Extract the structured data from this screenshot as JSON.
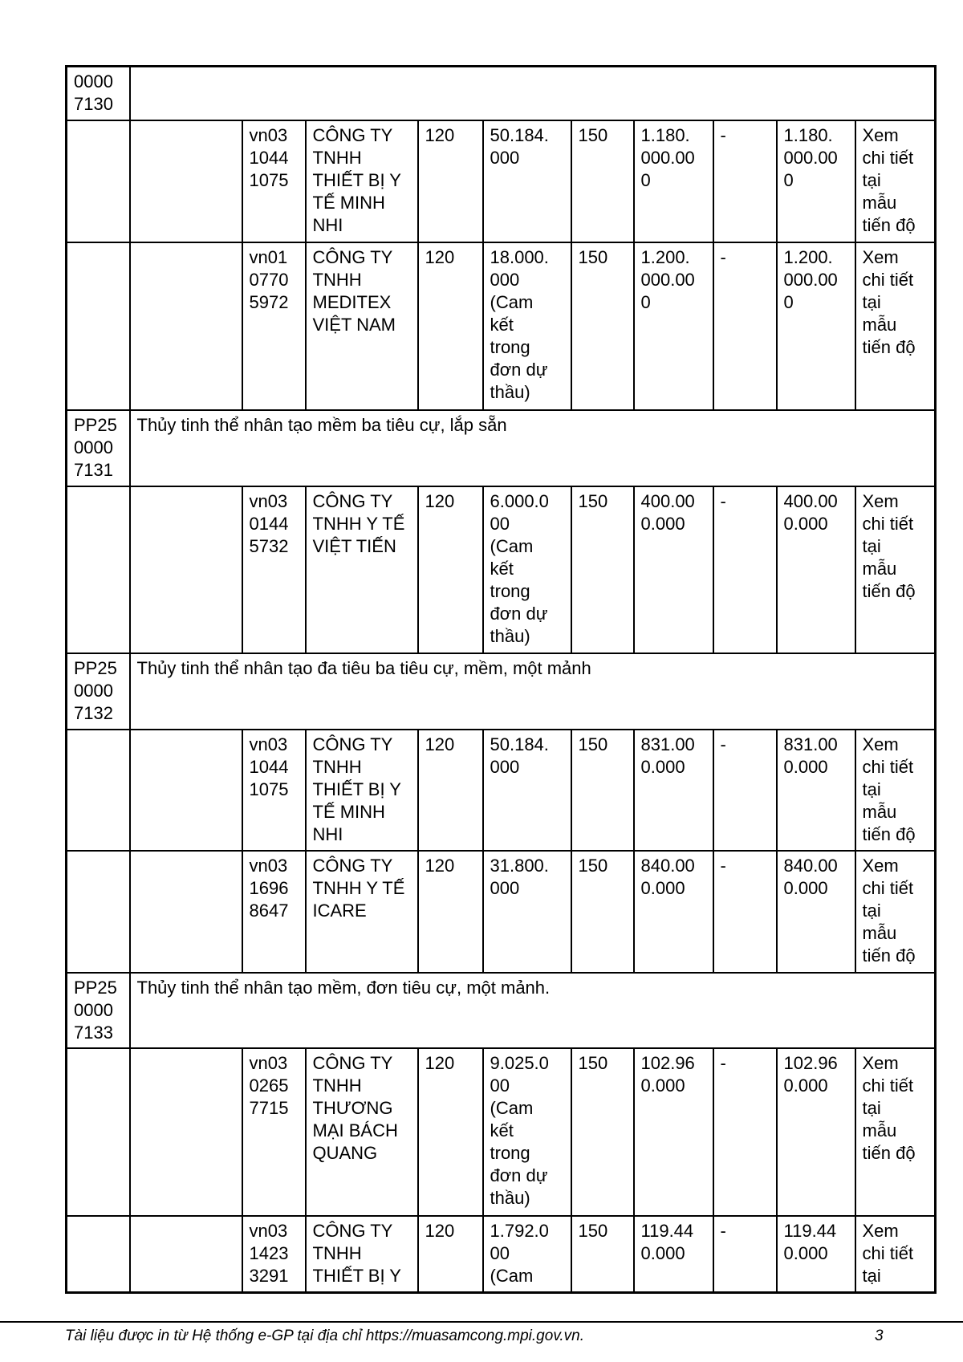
{
  "rows": [
    {
      "type": "item",
      "code": "0000\n7130",
      "name": ""
    },
    {
      "type": "bid",
      "id": "vn03\n1044\n1075",
      "company": "CÔNG TY\nTNHH\nTHIẾT BỊ Y\nTẾ MINH\nNHI",
      "c1": "120",
      "c2": "50.184.\n000",
      "c3": "150",
      "c4": "1.180.\n000.00\n0",
      "c5": "-",
      "c6": "1.180.\n000.00\n0",
      "c7": "Xem\nchi tiết\ntại\nmẫu\ntiến độ"
    },
    {
      "type": "bid",
      "id": "vn01\n0770\n5972",
      "company": "CÔNG TY\nTNHH\nMEDITEX\nVIỆT NAM",
      "c1": "120",
      "c2": "18.000.\n000\n(Cam\nkết\ntrong\nđơn dự\nthầu)",
      "c3": "150",
      "c4": "1.200.\n000.00\n0",
      "c5": "-",
      "c6": "1.200.\n000.00\n0",
      "c7": "Xem\nchi tiết\ntại\nmẫu\ntiến độ"
    },
    {
      "type": "item",
      "code": "PP25\n0000\n7131",
      "name": "Thủy tinh thể nhân tạo mềm ba tiêu cự, lắp sẵn"
    },
    {
      "type": "bid",
      "id": "vn03\n0144\n5732",
      "company": "CÔNG TY\nTNHH Y TẾ\nVIỆT TIẾN",
      "c1": "120",
      "c2": "6.000.0\n00\n(Cam\nkết\ntrong\nđơn dự\nthầu)",
      "c3": "150",
      "c4": "400.00\n0.000",
      "c5": "-",
      "c6": "400.00\n0.000",
      "c7": "Xem\nchi tiết\ntại\nmẫu\ntiến độ"
    },
    {
      "type": "item",
      "code": "PP25\n0000\n7132",
      "name": "Thủy tinh thể nhân tạo đa tiêu ba tiêu cự, mềm, một  mảnh"
    },
    {
      "type": "bid",
      "id": "vn03\n1044\n1075",
      "company": "CÔNG TY\nTNHH\nTHIẾT BỊ Y\nTẾ MINH\nNHI",
      "c1": "120",
      "c2": "50.184.\n000",
      "c3": "150",
      "c4": "831.00\n0.000",
      "c5": "-",
      "c6": "831.00\n0.000",
      "c7": "Xem\nchi tiết\ntại\nmẫu\ntiến độ"
    },
    {
      "type": "bid",
      "id": "vn03\n1696\n8647",
      "company": "CÔNG TY\nTNHH Y TẾ\nICARE",
      "c1": "120",
      "c2": "31.800.\n000",
      "c3": "150",
      "c4": "840.00\n0.000",
      "c5": "-",
      "c6": "840.00\n0.000",
      "c7": "Xem\nchi tiết\ntại\nmẫu\ntiến độ"
    },
    {
      "type": "item",
      "code": "PP25\n0000\n7133",
      "name": "Thủy tinh thể nhân tạo mềm, đơn tiêu cự, một mảnh."
    },
    {
      "type": "bid",
      "id": "vn03\n0265\n7715",
      "company": "CÔNG TY\nTNHH\nTHƯƠNG\nMẠI BÁCH\nQUANG",
      "c1": "120",
      "c2": "9.025.0\n00\n(Cam\nkết\ntrong\nđơn dự\nthầu)",
      "c3": "150",
      "c4": "102.96\n0.000",
      "c5": "-",
      "c6": "102.96\n0.000",
      "c7": "Xem\nchi tiết\ntại\nmẫu\ntiến độ"
    },
    {
      "type": "bid",
      "id": "vn03\n1423\n3291",
      "company": "CÔNG TY\nTNHH\nTHIẾT BỊ Y",
      "c1": "120",
      "c2": "1.792.0\n00\n(Cam",
      "c3": "150",
      "c4": "119.44\n0.000",
      "c5": "-",
      "c6": "119.44\n0.000",
      "c7": "Xem\nchi tiết\ntại"
    }
  ],
  "footer": {
    "text": "Tài liệu được in từ Hệ thống e-GP tại địa chỉ https://muasamcong.mpi.gov.vn.",
    "page": "3"
  }
}
